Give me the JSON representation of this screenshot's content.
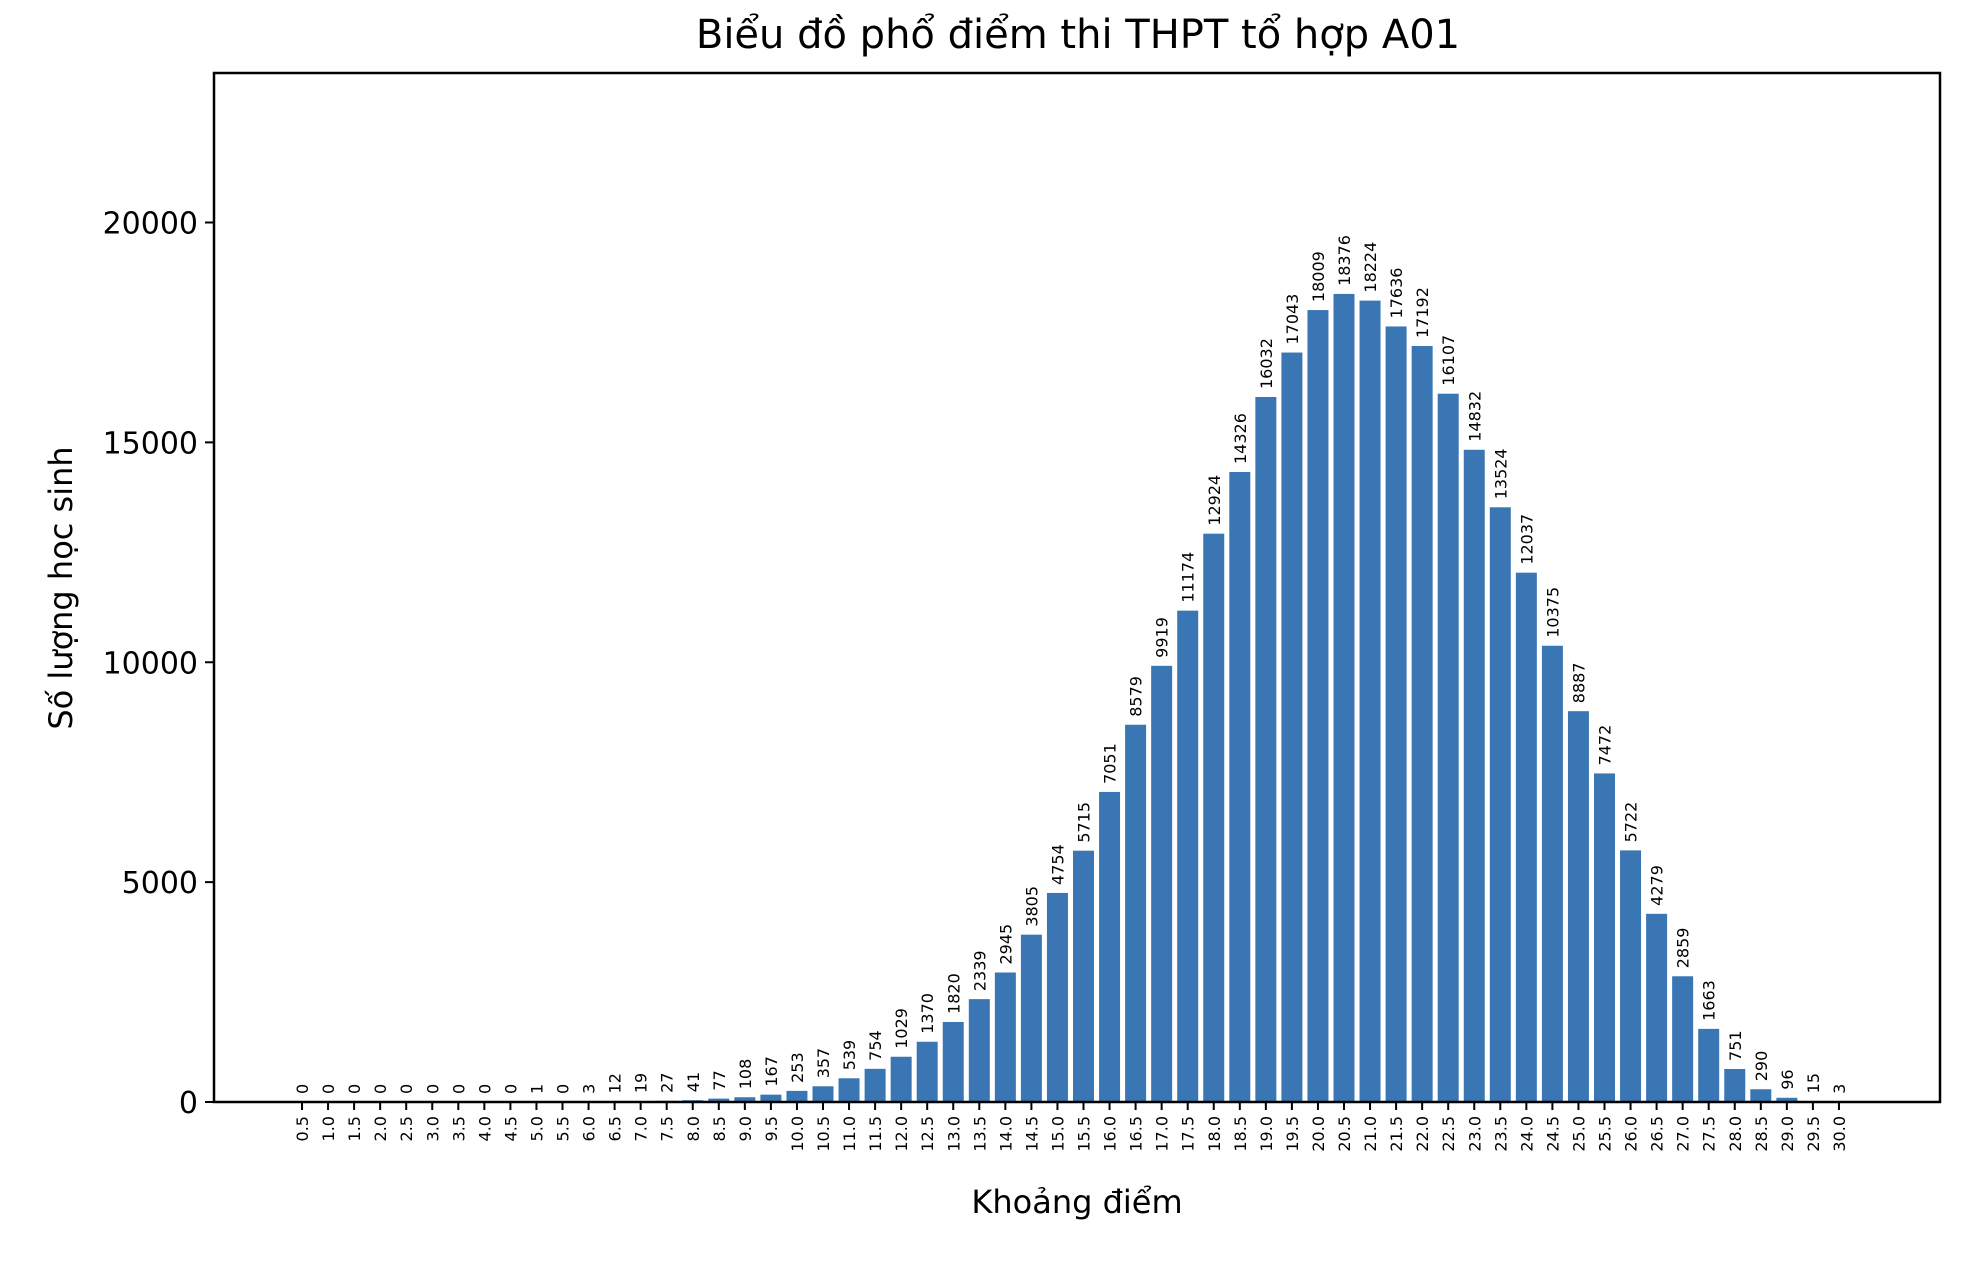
{
  "chart_data": {
    "type": "bar",
    "title": "Biểu đồ phổ điểm thi THPT tổ hợp A01",
    "xlabel": "Khoảng điểm",
    "ylabel": "Số lượng học sinh",
    "categories": [
      "0.5",
      "1.0",
      "1.5",
      "2.0",
      "2.5",
      "3.0",
      "3.5",
      "4.0",
      "4.5",
      "5.0",
      "5.5",
      "6.0",
      "6.5",
      "7.0",
      "7.5",
      "8.0",
      "8.5",
      "9.0",
      "9.5",
      "10.0",
      "10.5",
      "11.0",
      "11.5",
      "12.0",
      "12.5",
      "13.0",
      "13.5",
      "14.0",
      "14.5",
      "15.0",
      "15.5",
      "16.0",
      "16.5",
      "17.0",
      "17.5",
      "18.0",
      "18.5",
      "19.0",
      "19.5",
      "20.0",
      "20.5",
      "21.0",
      "21.5",
      "22.0",
      "22.5",
      "23.0",
      "23.5",
      "24.0",
      "24.5",
      "25.0",
      "25.5",
      "26.0",
      "26.5",
      "27.0",
      "27.5",
      "28.0",
      "28.5",
      "29.0",
      "29.5",
      "30.0"
    ],
    "values": [
      0,
      0,
      0,
      0,
      0,
      0,
      0,
      0,
      0,
      1,
      0,
      3,
      12,
      19,
      27,
      41,
      77,
      108,
      167,
      253,
      357,
      539,
      754,
      1029,
      1370,
      1820,
      2339,
      2945,
      3805,
      4754,
      5715,
      7051,
      8579,
      9919,
      11174,
      12924,
      14326,
      16032,
      17043,
      18009,
      18376,
      18224,
      17636,
      17192,
      16107,
      14832,
      13524,
      12037,
      10375,
      8887,
      7472,
      5722,
      4279,
      2859,
      1663,
      751,
      290,
      96,
      15,
      3
    ],
    "yticks": [
      0,
      5000,
      10000,
      15000,
      20000
    ],
    "ylim": [
      0,
      23400
    ],
    "grid": false,
    "bar_color": "#3a76b3"
  }
}
